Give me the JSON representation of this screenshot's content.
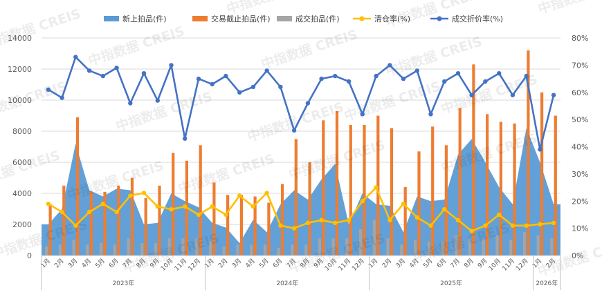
{
  "chart_data": {
    "type": "bar",
    "title": "",
    "y_left": {
      "min": 0,
      "max": 14000,
      "ticks": [
        "0",
        "2000",
        "4000",
        "6000",
        "8000",
        "10000",
        "12000",
        "14000"
      ]
    },
    "y_right": {
      "min": 0,
      "max": 80,
      "ticks": [
        "0%",
        "10%",
        "20%",
        "30%",
        "40%",
        "50%",
        "60%",
        "70%",
        "80%"
      ]
    },
    "months": [
      "1月",
      "2月",
      "3月",
      "4月",
      "5月",
      "6月",
      "7月",
      "8月",
      "9月",
      "10月",
      "11月",
      "12月",
      "1月",
      "2月",
      "3月",
      "4月",
      "5月",
      "6月",
      "7月",
      "8月",
      "9月",
      "10月",
      "11月",
      "12月",
      "1月",
      "2月",
      "3月",
      "4月",
      "5月",
      "6月",
      "7月",
      "8月",
      "9月",
      "10月",
      "11月",
      "12月",
      "1月",
      "2月"
    ],
    "years": [
      {
        "label": "2023年",
        "start": 0,
        "end": 11
      },
      {
        "label": "2024年",
        "start": 12,
        "end": 23
      },
      {
        "label": "2025年",
        "start": 24,
        "end": 35
      },
      {
        "label": "2026年",
        "start": 36,
        "end": 37
      }
    ],
    "legend_position": "top",
    "grid": true,
    "series": [
      {
        "name": "新上拍品(件)",
        "type": "area",
        "axis": "left",
        "color": "#5B9BD5",
        "values": [
          2000,
          3000,
          7200,
          4200,
          3800,
          4300,
          4200,
          2000,
          2100,
          4000,
          3500,
          3100,
          2100,
          1800,
          800,
          2300,
          1500,
          3300,
          4200,
          3600,
          4900,
          5900,
          2000,
          4000,
          3300,
          3200,
          1500,
          3800,
          3500,
          3600,
          6500,
          7500,
          6000,
          4400,
          3300,
          8200,
          6000,
          3300
        ]
      },
      {
        "name": "交易截止拍品(件)",
        "type": "bar",
        "axis": "left",
        "color": "#ED7D31",
        "values": [
          3300,
          4500,
          8900,
          4100,
          4100,
          4500,
          5000,
          3700,
          4500,
          6600,
          6100,
          7100,
          4700,
          3900,
          3900,
          3800,
          3400,
          4600,
          7500,
          6000,
          8700,
          9300,
          8400,
          8400,
          9000,
          8200,
          4400,
          6700,
          8300,
          7100,
          9500,
          12300,
          9100,
          8600,
          8500,
          13200,
          10500,
          9000
        ]
      },
      {
        "name": "成交拍品(件)",
        "type": "bar",
        "axis": "left",
        "color": "#A5A5A5",
        "values": [
          600,
          700,
          1000,
          700,
          800,
          700,
          1100,
          800,
          800,
          1100,
          1100,
          1100,
          900,
          600,
          700,
          700,
          700,
          500,
          700,
          700,
          1100,
          1100,
          1100,
          1700,
          2300,
          1100,
          700,
          1000,
          900,
          900,
          1300,
          1100,
          1000,
          1300,
          1000,
          1500,
          1300,
          1100
        ]
      },
      {
        "name": "清仓率(%)",
        "type": "line",
        "axis": "right",
        "color": "#FFC000",
        "values": [
          19,
          16,
          11,
          16,
          19,
          16,
          22,
          23,
          18,
          17,
          18,
          15,
          18,
          15,
          22,
          18,
          23,
          11,
          10,
          12,
          13,
          12,
          13,
          20,
          25,
          13,
          19,
          14,
          11,
          17,
          13,
          9,
          11,
          15,
          11,
          11,
          11.5,
          12
        ]
      },
      {
        "name": "成交折价率(%)",
        "type": "line",
        "axis": "right",
        "color": "#4472C4",
        "values": [
          61,
          58,
          73,
          68,
          66,
          69,
          56,
          67,
          57,
          70,
          43,
          65,
          63,
          66,
          60,
          62,
          68,
          62,
          46,
          56,
          65,
          66,
          64,
          52,
          66,
          70,
          65,
          68,
          52,
          64,
          67,
          59,
          64,
          67,
          59,
          66,
          39,
          59
        ]
      }
    ]
  },
  "watermark": {
    "text": "中指数据 CREIS"
  }
}
